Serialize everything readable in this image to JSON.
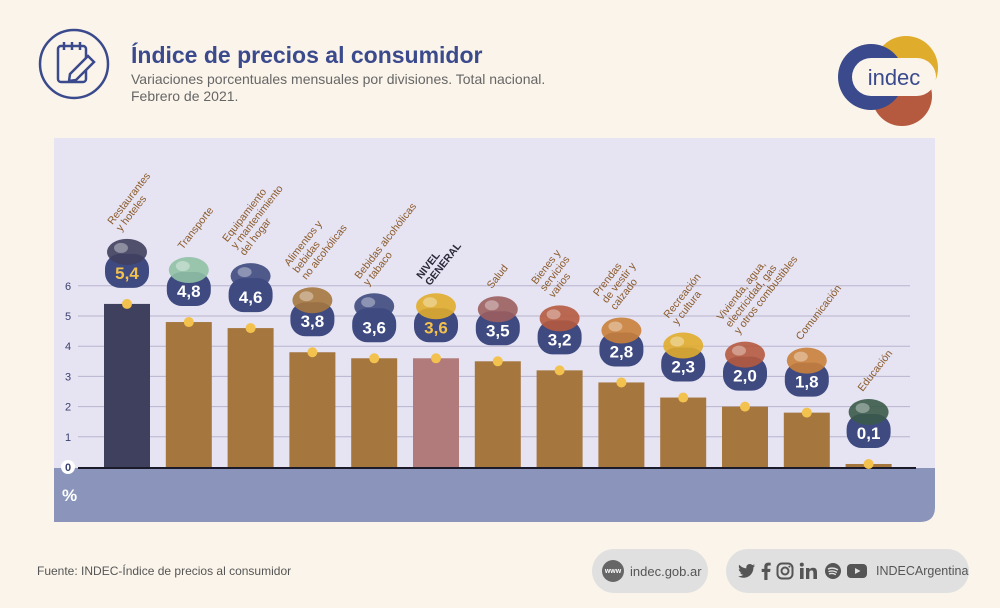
{
  "header": {
    "title": "Índice de precios al consumidor",
    "subtitle_line1": "Variaciones porcentuales mensuales por divisiones. Total nacional.",
    "subtitle_line2": "Febrero de 2021.",
    "logo_text": "indec"
  },
  "colors": {
    "bar_default": "#a5773f",
    "bar_highlight_dark": "#3f3f5e",
    "bar_highlight_rose": "#b07b7a",
    "plot_bg": "#e6e3f2",
    "axis_band": "#8b94bb",
    "badge": "#3e4a80",
    "value_yellow": "#f2c14e",
    "dot": "#f2c14e"
  },
  "chart_data": {
    "type": "bar",
    "title": "Índice de precios al consumidor",
    "ylabel": "%",
    "ylim": [
      0,
      6
    ],
    "yticks": [
      "0",
      "1",
      "2",
      "3",
      "4",
      "5",
      "6"
    ],
    "grid": true,
    "categories": [
      "Restaurantes y hoteles",
      "Transporte",
      "Equipamiento y mantenimiento del hogar",
      "Alimentos y bebidas no alcohólicas",
      "Bebidas alcohólicas y tabaco",
      "NIVEL GENERAL",
      "Salud",
      "Bienes y servicios varios",
      "Prendas de vestir y calzado",
      "Recreación y cultura",
      "Vivienda, agua, electricidad, gas y otros combustibles",
      "Comunicación",
      "Educación"
    ],
    "category_label_lines": [
      [
        "Restaurantes",
        "y hoteles"
      ],
      [
        "Transporte"
      ],
      [
        "Equipamiento",
        "y mantenimiento",
        "del hogar"
      ],
      [
        "Alimentos y",
        "bebidas",
        "no alcohólicas"
      ],
      [
        "Bebidas alcohólicas",
        "y tabaco"
      ],
      [
        "NIVEL",
        "GENERAL"
      ],
      [
        "Salud"
      ],
      [
        "Bienes y",
        "servicios",
        "varios"
      ],
      [
        "Prendas",
        "de vestir y",
        "calzado"
      ],
      [
        "Recreación",
        "y cultura"
      ],
      [
        "Vivienda, agua,",
        "electricidad, gas",
        "y otros combustibles"
      ],
      [
        "Comunicación"
      ],
      [
        "Educación"
      ]
    ],
    "values": [
      5.4,
      4.8,
      4.6,
      3.8,
      3.6,
      3.6,
      3.5,
      3.2,
      2.8,
      2.3,
      2.0,
      1.8,
      0.1
    ],
    "value_labels": [
      "5,4",
      "4,8",
      "4,6",
      "3,8",
      "3,6",
      "3,6",
      "3,5",
      "3,2",
      "2,8",
      "2,3",
      "2,0",
      "1,8",
      "0,1"
    ],
    "highlight": [
      "dark",
      "none",
      "none",
      "none",
      "none",
      "rose",
      "none",
      "none",
      "none",
      "none",
      "none",
      "none",
      "none"
    ],
    "icons": [
      "restaurant-icon",
      "bus-icon",
      "washing-machine-icon",
      "roast-chicken-icon",
      "bottles-icon",
      "shopping-basket-icon",
      "medical-cross-icon",
      "comb-scissors-icon",
      "tshirt-icon",
      "theater-icon",
      "lamp-icon",
      "phone-icon",
      "book-icon"
    ]
  },
  "footer": {
    "source": "Fuente: INDEC-Índice de precios al consumidor",
    "website": "indec.gob.ar",
    "www_badge": "www",
    "social_handle": "INDECArgentina"
  }
}
